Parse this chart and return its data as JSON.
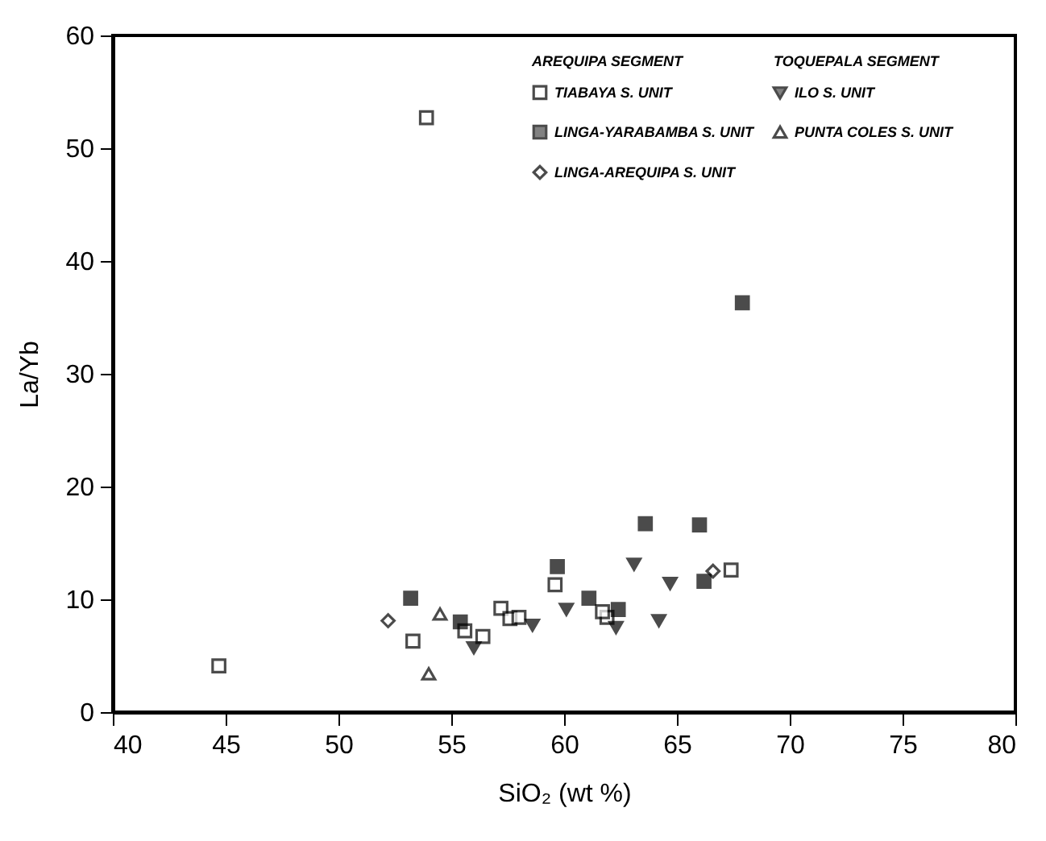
{
  "chart_data": {
    "type": "scatter",
    "xlabel": "SiO₂ (wt %)",
    "ylabel": "La/Yb",
    "xlim": [
      40,
      80
    ],
    "xticks": [
      40,
      45,
      50,
      55,
      60,
      65,
      70,
      75,
      80
    ],
    "ylim": [
      0,
      60
    ],
    "yticks": [
      0,
      10,
      20,
      30,
      40,
      50,
      60
    ],
    "grid": false,
    "legend": "top right",
    "annotations": [
      "AREQUIPA SEGMENT",
      "TOQUEPALA SEGMENT"
    ],
    "series": [
      {
        "name": "TIABAYA S. UNIT",
        "color": "#000000",
        "marker": "square",
        "x": [
          44.7,
          53.9,
          53.3,
          55.6,
          56.4,
          57.2,
          57.6,
          58.0,
          59.6,
          61.9,
          61.7,
          67.4
        ],
        "values": [
          4.1,
          52.7,
          6.3,
          7.2,
          6.7,
          9.2,
          8.3,
          8.4,
          11.3,
          8.4,
          8.9,
          12.6
        ]
      },
      {
        "name": "LINGA-YARABAMBA S. UNIT",
        "color": "#000000",
        "marker": "square-filled",
        "x": [
          53.2,
          55.4,
          59.7,
          61.1,
          62.4,
          63.6,
          66.0,
          66.2,
          67.9
        ],
        "values": [
          10.1,
          8.0,
          12.9,
          10.1,
          9.1,
          16.7,
          16.6,
          11.6,
          36.3
        ]
      },
      {
        "name": "LINGA-AREQUIPA S. UNIT",
        "color": "#000000",
        "marker": "diamond",
        "x": [
          52.2,
          66.6
        ],
        "values": [
          8.1,
          12.5
        ]
      },
      {
        "name": "ILO S. UNIT",
        "color": "#000000",
        "marker": "triangle-down-filled",
        "x": [
          56.0,
          58.6,
          60.1,
          62.3,
          63.1,
          64.2,
          64.7
        ],
        "values": [
          5.7,
          7.7,
          9.1,
          7.5,
          13.1,
          8.1,
          11.4
        ]
      },
      {
        "name": "PUNTA COLES S. UNIT",
        "color": "#000000",
        "marker": "triangle",
        "x": [
          54.0,
          54.5
        ],
        "values": [
          3.4,
          8.7
        ]
      }
    ]
  }
}
